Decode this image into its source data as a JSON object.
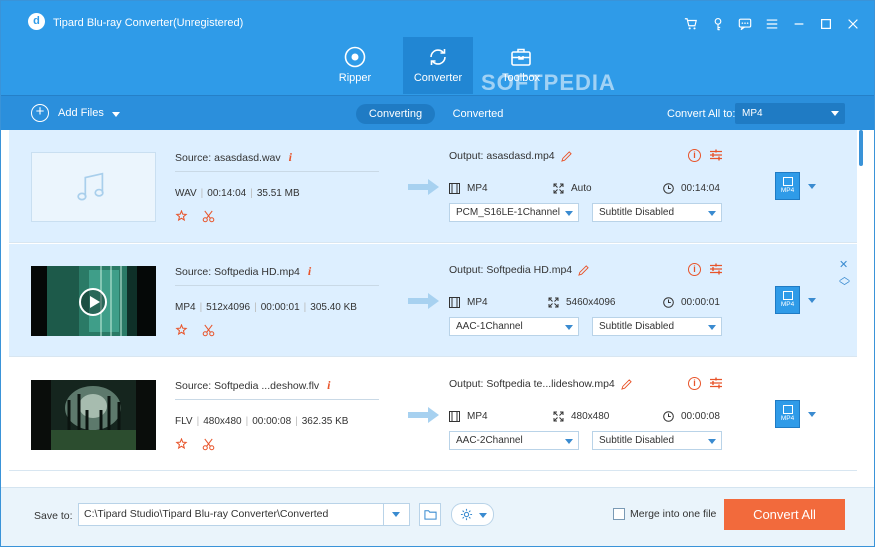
{
  "window": {
    "title": "Tipard Blu-ray Converter(Unregistered)",
    "logo_letter": "d"
  },
  "title_icons": [
    "cart-icon",
    "key-icon",
    "chat-icon",
    "menu-icon",
    "minimize-icon",
    "maximize-icon",
    "close-icon"
  ],
  "modes": [
    {
      "label": "Ripper",
      "icon": "disc-icon",
      "active": false
    },
    {
      "label": "Converter",
      "icon": "convert-icon",
      "active": true
    },
    {
      "label": "Toolbox",
      "icon": "toolbox-icon",
      "active": false
    }
  ],
  "watermark": "SOFTPEDIA",
  "toolbar": {
    "add_files": "Add Files",
    "tabs": [
      {
        "label": "Converting",
        "active": true
      },
      {
        "label": "Converted",
        "active": false
      }
    ],
    "convert_all_label": "Convert All to:",
    "convert_all_value": "MP4"
  },
  "files": [
    {
      "source": "Source: asasdasd.wav",
      "format": "WAV",
      "duration": "00:14:04",
      "size": "35.51 MB",
      "resolution": "",
      "output": "Output: asasdasd.mp4",
      "out_format": "MP4",
      "out_resolution": "Auto",
      "out_duration": "00:14:04",
      "audio_track": "PCM_S16LE-1Channel",
      "subtitle": "Subtitle Disabled",
      "fmt_label": "MP4",
      "thumb": "audio"
    },
    {
      "source": "Source: Softpedia HD.mp4",
      "format": "MP4",
      "duration": "00:00:01",
      "size": "305.40 KB",
      "resolution": "512x4096",
      "output": "Output: Softpedia HD.mp4",
      "out_format": "MP4",
      "out_resolution": "5460x4096",
      "out_duration": "00:00:01",
      "audio_track": "AAC-1Channel",
      "subtitle": "Subtitle Disabled",
      "fmt_label": "MP4",
      "thumb": "video"
    },
    {
      "source": "Source: Softpedia ...deshow.flv",
      "format": "FLV",
      "duration": "00:00:08",
      "size": "362.35 KB",
      "resolution": "480x480",
      "output": "Output: Softpedia te...lideshow.mp4",
      "out_format": "MP4",
      "out_resolution": "480x480",
      "out_duration": "00:00:08",
      "audio_track": "AAC-2Channel",
      "subtitle": "Subtitle Disabled",
      "fmt_label": "MP4",
      "thumb": "forest"
    }
  ],
  "bottom": {
    "save_label": "Save to:",
    "save_path": "C:\\Tipard Studio\\Tipard Blu-ray Converter\\Converted",
    "merge_label": "Merge into one file",
    "convert_button": "Convert All"
  },
  "colors": {
    "header_blue": "#2f9be8",
    "accent_orange": "#f26a3c",
    "selected_row": "#ddefff"
  }
}
